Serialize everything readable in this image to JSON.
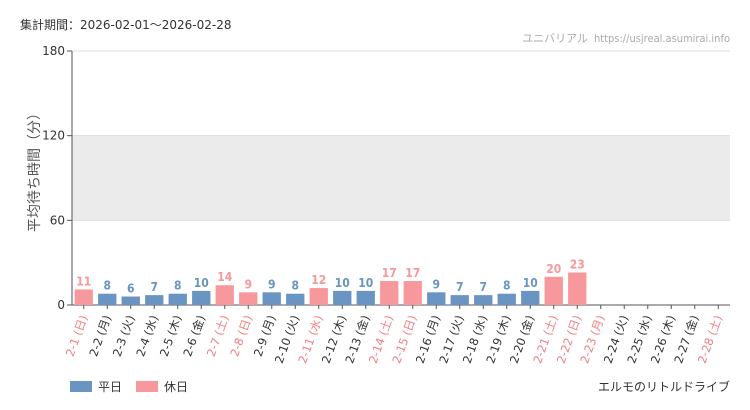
{
  "header": {
    "period": "集計期間：2026-02-01〜2026-02-28",
    "site_name": "ユニバリアル",
    "site_url": "https://usjreal.asumirai.info"
  },
  "footer": {
    "attraction": "エルモのリトルドライブ"
  },
  "colors": {
    "weekday": "#6a95c2",
    "holiday": "#f7999c",
    "grid_band": "#ebebeb",
    "axis": "#555555"
  },
  "chart_data": {
    "type": "bar",
    "title": "",
    "xlabel": "",
    "ylabel": "平均待ち時間（分）",
    "ylim": [
      0,
      180
    ],
    "yticks": [
      0,
      60,
      120,
      180
    ],
    "grid": "horizontal bands",
    "legend_position": "bottom-left",
    "categories": [
      "2-1 (日)",
      "2-2 (月)",
      "2-3 (火)",
      "2-4 (水)",
      "2-5 (木)",
      "2-6 (金)",
      "2-7 (土)",
      "2-8 (日)",
      "2-9 (月)",
      "2-10 (火)",
      "2-11 (水)",
      "2-12 (木)",
      "2-13 (金)",
      "2-14 (土)",
      "2-15 (日)",
      "2-16 (月)",
      "2-17 (火)",
      "2-18 (水)",
      "2-19 (木)",
      "2-20 (金)",
      "2-21 (土)",
      "2-22 (日)",
      "2-23 (月)",
      "2-24 (火)",
      "2-25 (水)",
      "2-26 (木)",
      "2-27 (金)",
      "2-28 (土)"
    ],
    "values": [
      11,
      8,
      6,
      7,
      8,
      10,
      14,
      9,
      9,
      8,
      12,
      10,
      10,
      17,
      17,
      9,
      7,
      7,
      8,
      10,
      20,
      23,
      null,
      null,
      null,
      null,
      null,
      null
    ],
    "day_type": [
      "holiday",
      "weekday",
      "weekday",
      "weekday",
      "weekday",
      "weekday",
      "holiday",
      "holiday",
      "weekday",
      "weekday",
      "holiday",
      "weekday",
      "weekday",
      "holiday",
      "holiday",
      "weekday",
      "weekday",
      "weekday",
      "weekday",
      "weekday",
      "holiday",
      "holiday",
      "holiday",
      "weekday",
      "weekday",
      "weekday",
      "weekday",
      "holiday"
    ],
    "series": [
      {
        "name": "平日",
        "key": "weekday"
      },
      {
        "name": "休日",
        "key": "holiday"
      }
    ]
  }
}
